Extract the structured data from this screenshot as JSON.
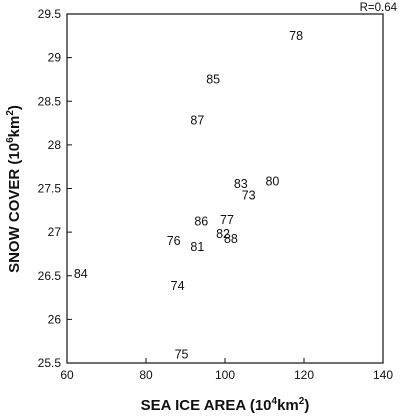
{
  "chart_data": {
    "type": "scatter",
    "title": "",
    "xlabel": "SEA ICE AREA (10",
    "xlabel_sup": "4",
    "xlabel_unit_end": "km",
    "xlabel_unit_sup": "2",
    "xlabel_close": ")",
    "ylabel": "SNOW COVER (10",
    "ylabel_sup": "6",
    "ylabel_unit_end": "km",
    "ylabel_unit_sup": "2",
    "ylabel_close": ")",
    "annotation": "R=0.64",
    "xlim": [
      60,
      140
    ],
    "ylim": [
      25.5,
      29.5
    ],
    "xticks": [
      "60",
      "80",
      "100",
      "120",
      "140"
    ],
    "yticks": [
      "25.5",
      "26",
      "26.5",
      "27",
      "27.5",
      "28",
      "28.5",
      "29",
      "29.5"
    ],
    "xtick_values": [
      60,
      80,
      100,
      120,
      140
    ],
    "ytick_values": [
      25.5,
      26,
      26.5,
      27,
      27.5,
      28,
      28.5,
      29,
      29.5
    ],
    "grid": false,
    "points": [
      {
        "label": "78",
        "x": 118,
        "y": 29.25
      },
      {
        "label": "85",
        "x": 97,
        "y": 28.75
      },
      {
        "label": "87",
        "x": 93,
        "y": 28.28
      },
      {
        "label": "80",
        "x": 112,
        "y": 27.58
      },
      {
        "label": "83",
        "x": 104,
        "y": 27.55
      },
      {
        "label": "73",
        "x": 106,
        "y": 27.42
      },
      {
        "label": "86",
        "x": 94,
        "y": 27.12
      },
      {
        "label": "77",
        "x": 100.5,
        "y": 27.14
      },
      {
        "label": "82",
        "x": 99.5,
        "y": 26.98
      },
      {
        "label": "76",
        "x": 87,
        "y": 26.9
      },
      {
        "label": "88",
        "x": 101.5,
        "y": 26.92
      },
      {
        "label": "81",
        "x": 93,
        "y": 26.83
      },
      {
        "label": "84",
        "x": 63.5,
        "y": 26.52
      },
      {
        "label": "74",
        "x": 88,
        "y": 26.38
      },
      {
        "label": "75",
        "x": 89,
        "y": 25.6
      }
    ]
  }
}
